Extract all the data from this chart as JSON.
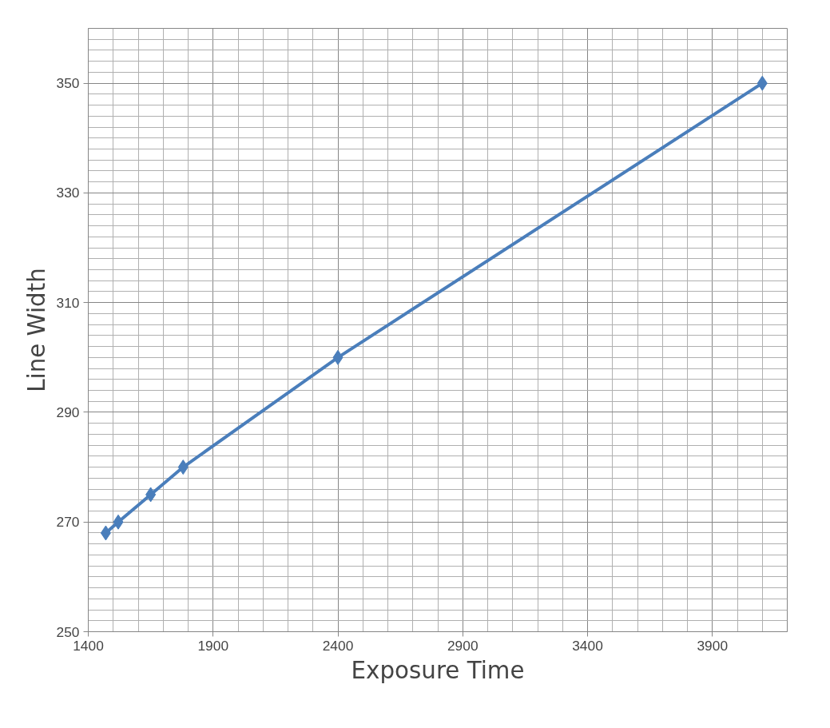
{
  "chart_data": {
    "type": "line",
    "xlabel": "Exposure Time",
    "ylabel": "Line Width",
    "x": [
      1470,
      1520,
      1650,
      1780,
      2400,
      4100
    ],
    "series": [
      {
        "color": "#4a7ebb",
        "values": [
          268,
          270,
          275,
          280,
          300,
          350
        ]
      }
    ],
    "xlim": [
      1400,
      4200
    ],
    "xticks": [
      1400,
      1900,
      2400,
      2900,
      3400,
      3900
    ],
    "ylim": [
      250,
      360
    ],
    "yticks": [
      250,
      270,
      290,
      310,
      330,
      350
    ],
    "grid": true,
    "marker": "diamond",
    "line_style": "solid"
  }
}
